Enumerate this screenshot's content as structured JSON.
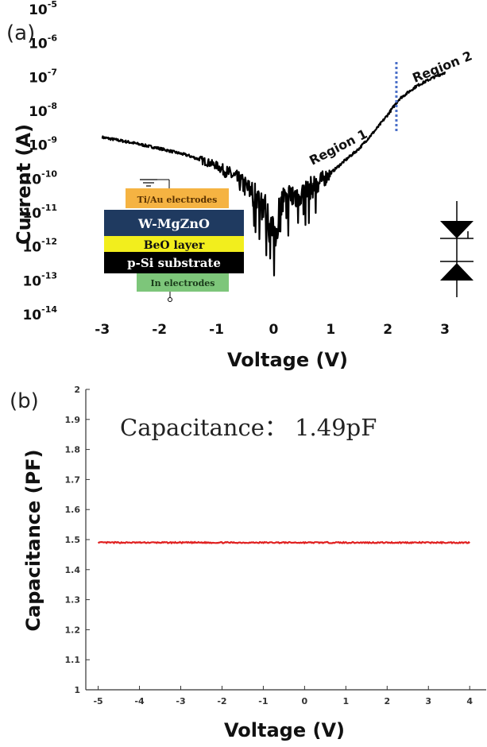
{
  "chart_data": [
    {
      "panel": "(a)",
      "type": "line",
      "xlabel": "Voltage (V)",
      "ylabel": "Current (A)",
      "yscale": "log",
      "xlim": [
        -3.4,
        3.5
      ],
      "ylim": [
        1e-14,
        1e-05
      ],
      "x_ticks": [
        "-3",
        "-2",
        "-1",
        "0",
        "1",
        "2",
        "3"
      ],
      "y_tick_mantissa": "10",
      "y_tick_exponents": [
        "-14",
        "-13",
        "-12",
        "-11",
        "-10",
        "-9",
        "-8",
        "-7",
        "-6",
        "-5"
      ],
      "series": [
        {
          "x": [
            -3.0,
            -2.5,
            -2.0,
            -1.5,
            -1.0,
            -0.7,
            -0.5,
            -0.3,
            -0.15,
            0.0,
            0.05,
            0.15,
            0.3,
            0.5,
            0.7,
            0.8,
            1.0,
            1.2,
            1.5,
            1.8,
            2.0,
            2.2,
            2.5,
            2.8,
            3.0
          ],
          "y": [
            1.7e-09,
            1.2e-09,
            8e-10,
            5e-10,
            2.5e-10,
            1.2e-10,
            6e-11,
            3e-11,
            1.5e-11,
            2e-12,
            5e-12,
            2e-11,
            3e-11,
            4e-11,
            6e-11,
            8e-11,
            1.5e-10,
            3e-10,
            8e-10,
            3e-09,
            8e-09,
            2.3e-08,
            5.5e-08,
            1e-07,
            1.4e-07
          ],
          "color": "#000000"
        }
      ],
      "divider_x": 2.15,
      "divider_color": "#4a6fc8",
      "annotations": [
        "Region 1",
        "Region 2"
      ],
      "inset_layers": [
        {
          "label": "Ti/Au electrodes",
          "color": "#f5b342"
        },
        {
          "label": "W-MgZnO",
          "color": "#1f3a60"
        },
        {
          "label": "BeO layer",
          "color": "#f2ee1d"
        },
        {
          "label": "p-Si substrate",
          "color": "#000000"
        },
        {
          "label": "In electrodes",
          "color": "#7dc67a"
        }
      ]
    },
    {
      "panel": "(b)",
      "type": "line",
      "xlabel": "Voltage (V)",
      "ylabel": "Capacitance (PF)",
      "xlim": [
        -5.3,
        4.4
      ],
      "ylim": [
        1.0,
        2.0
      ],
      "x_ticks": [
        "-5",
        "-4",
        "-3",
        "-2",
        "-1",
        "0",
        "1",
        "2",
        "3",
        "4"
      ],
      "y_ticks": [
        "1",
        "1.1",
        "1.2",
        "1.3",
        "1.4",
        "1.5",
        "1.6",
        "1.7",
        "1.8",
        "1.9",
        "2"
      ],
      "series": [
        {
          "x": [
            -5,
            -4,
            -3,
            -2,
            -1,
            0,
            1,
            2,
            3,
            4
          ],
          "y": [
            1.49,
            1.49,
            1.49,
            1.49,
            1.49,
            1.49,
            1.49,
            1.49,
            1.49,
            1.49
          ],
          "color": "#e02020"
        }
      ],
      "annotation": "Capacitance：  1.49pF"
    }
  ]
}
